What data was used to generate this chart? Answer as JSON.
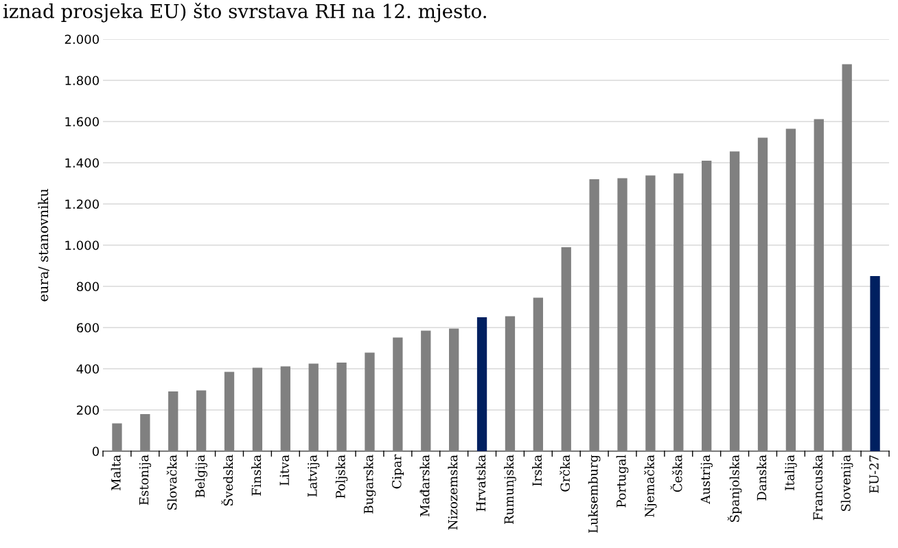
{
  "chart_data": {
    "type": "bar",
    "annotations": [
      "iznad prosjeka EU) što svrstava RH na 12. mjesto."
    ],
    "ylabel": "eura/ stanovniku",
    "categories": [
      "Malta",
      "Estonija",
      "Slovačka",
      "Belgija",
      "Švedska",
      "Finska",
      "Litva",
      "Latvija",
      "Poljska",
      "Bugarska",
      "Cipar",
      "Mađarska",
      "Nizozemska",
      "Hrvatska",
      "Rumunjska",
      "Irska",
      "Grčka",
      "Luksemburg",
      "Portugal",
      "Njemačka",
      "Češka",
      "Austrija",
      "Španjolska",
      "Danska",
      "Italija",
      "Francuska",
      "Slovenija",
      "EU-27"
    ],
    "values": [
      135,
      180,
      290,
      295,
      385,
      405,
      412,
      425,
      430,
      478,
      552,
      585,
      595,
      650,
      655,
      745,
      990,
      1320,
      1325,
      1338,
      1348,
      1410,
      1455,
      1522,
      1565,
      1612,
      1878,
      850
    ],
    "colors": [
      "#808080",
      "#808080",
      "#808080",
      "#808080",
      "#808080",
      "#808080",
      "#808080",
      "#808080",
      "#808080",
      "#808080",
      "#808080",
      "#808080",
      "#808080",
      "#002060",
      "#808080",
      "#808080",
      "#808080",
      "#808080",
      "#808080",
      "#808080",
      "#808080",
      "#808080",
      "#808080",
      "#808080",
      "#808080",
      "#808080",
      "#808080",
      "#002060"
    ],
    "ylim": [
      0,
      2000
    ],
    "yticks": [
      0,
      200,
      400,
      600,
      800,
      {
        "value": 1000,
        "label": "1.000"
      },
      {
        "value": 1200,
        "label": "1.200"
      },
      {
        "value": 1400,
        "label": "1.400"
      },
      {
        "value": 1600,
        "label": "1.600"
      },
      {
        "value": 1800,
        "label": "1.800"
      },
      {
        "value": 2000,
        "label": "2.000"
      }
    ],
    "grid": "y",
    "legend": false
  }
}
